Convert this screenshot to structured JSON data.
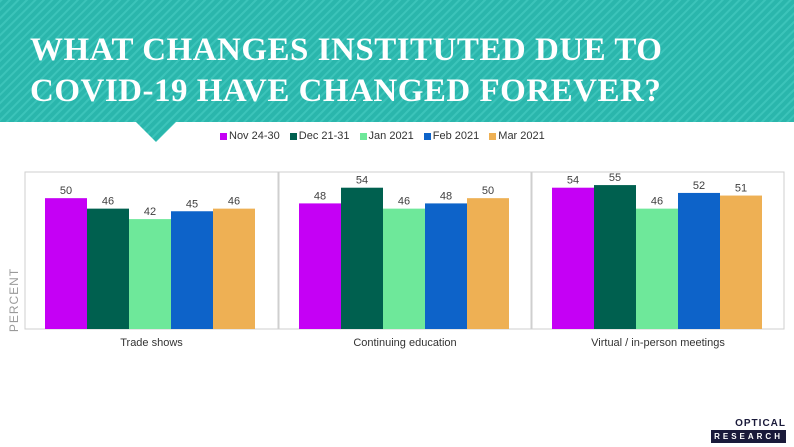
{
  "title": "WHAT CHANGES INSTITUTED DUE TO COVID-19 HAVE CHANGED FOREVER?",
  "colors": {
    "banner": "#2ab6ac",
    "banner_stripe": "#3cc4ba"
  },
  "logo": {
    "top": "OPTICAL",
    "bottom": "RESEARCH"
  },
  "chart_data": {
    "type": "bar",
    "ylabel": "PERCENT",
    "ylim": [
      0,
      60
    ],
    "grid": false,
    "legend_position": "top",
    "categories": [
      "Trade shows",
      "Continuing education",
      "Virtual / in-person meetings"
    ],
    "series": [
      {
        "name": "Nov 24-30",
        "color": "#c500f5",
        "values": [
          50,
          48,
          54
        ]
      },
      {
        "name": "Dec 21-31",
        "color": "#00604f",
        "values": [
          46,
          54,
          55
        ]
      },
      {
        "name": "Jan 2021",
        "color": "#6ee89a",
        "values": [
          42,
          46,
          46
        ]
      },
      {
        "name": "Feb 2021",
        "color": "#0d63c9",
        "values": [
          45,
          48,
          52
        ]
      },
      {
        "name": "Mar 2021",
        "color": "#eeb054",
        "values": [
          46,
          50,
          51
        ]
      }
    ]
  }
}
